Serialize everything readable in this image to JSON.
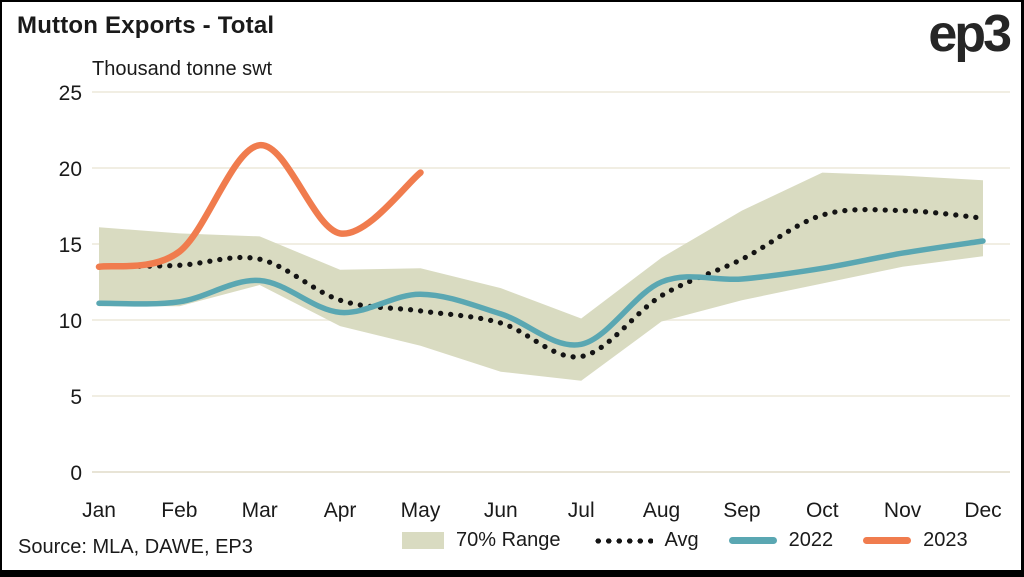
{
  "title": "Mutton Exports - Total",
  "subtitle": "Thousand tonne swt",
  "logo_text": "ep3",
  "source": "Source: MLA, DAWE, EP3",
  "colors": {
    "band": "#d9dbc1",
    "avg_dots": "#141414",
    "line_2022": "#5aa7b2",
    "line_2023": "#f07c4e",
    "gridline": "#f1eee3",
    "axis_line": "#e8e4d6",
    "text": "#1a1a1a"
  },
  "chart_data": {
    "type": "line",
    "title": "Mutton Exports - Total",
    "ylabel": "Thousand tonne swt",
    "categories": [
      "Jan",
      "Feb",
      "Mar",
      "Apr",
      "May",
      "Jun",
      "Jul",
      "Aug",
      "Sep",
      "Oct",
      "Nov",
      "Dec"
    ],
    "y_ticks": [
      0,
      5,
      10,
      15,
      20,
      25
    ],
    "ylim": [
      0,
      25
    ],
    "grid": true,
    "legend_position": "bottom",
    "series": [
      {
        "name": "70% Range",
        "type": "band",
        "upper": [
          16.1,
          15.7,
          15.5,
          13.3,
          13.4,
          12.1,
          10.1,
          14.1,
          17.2,
          19.7,
          19.5,
          19.2
        ],
        "lower": [
          10.9,
          10.9,
          12.3,
          9.6,
          8.3,
          6.6,
          6.0,
          9.9,
          11.3,
          12.4,
          13.5,
          14.2
        ]
      },
      {
        "name": "Avg",
        "type": "dotted-line",
        "values": [
          13.5,
          13.6,
          14.0,
          11.3,
          10.6,
          9.8,
          7.6,
          11.6,
          14.0,
          16.9,
          17.2,
          16.7
        ]
      },
      {
        "name": "2022",
        "type": "line",
        "values": [
          11.1,
          11.2,
          12.6,
          10.5,
          11.7,
          10.4,
          8.4,
          12.5,
          12.7,
          13.4,
          14.4,
          15.2
        ]
      },
      {
        "name": "2023",
        "type": "line",
        "values": [
          13.5,
          14.5,
          21.5,
          15.7,
          19.7,
          null,
          null,
          null,
          null,
          null,
          null,
          null
        ]
      }
    ]
  }
}
